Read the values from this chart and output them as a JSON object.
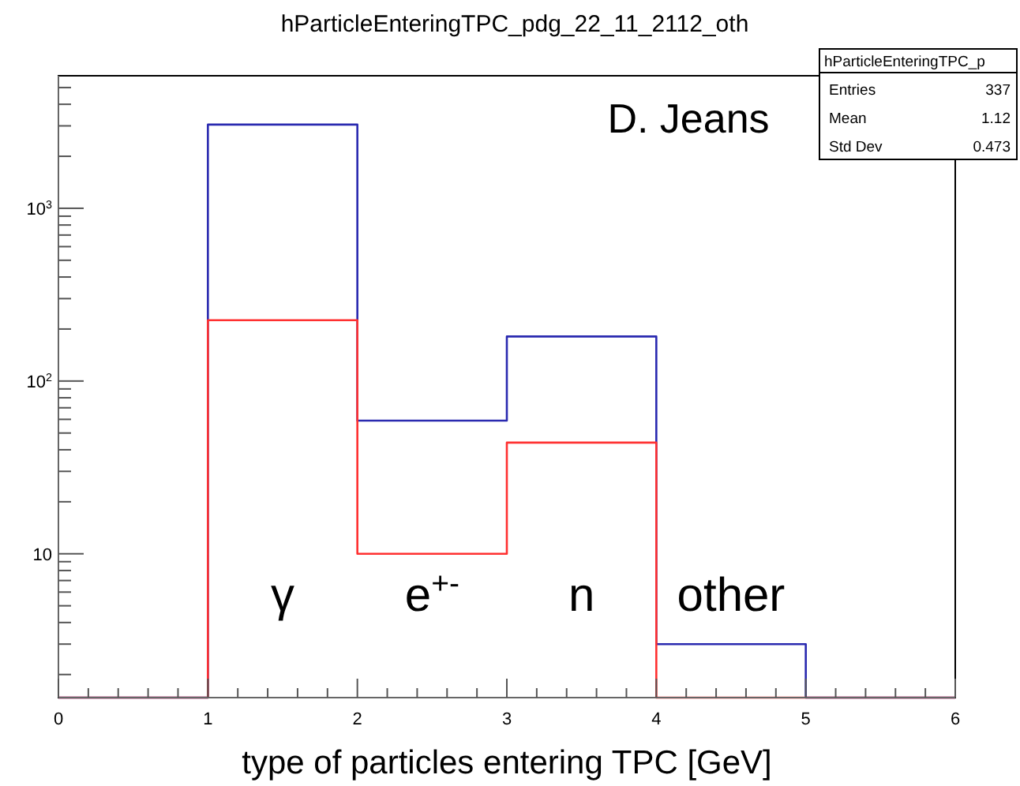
{
  "chart_data": {
    "type": "histogram",
    "title": "hParticleEnteringTPC_pdg_22_11_2112_oth",
    "xlabel": "type of particles entering TPC [GeV]",
    "bins": [
      0,
      1,
      2,
      3,
      4,
      5,
      6
    ],
    "series": [
      {
        "color": "#2a2ab0",
        "values": [
          null,
          3050,
          59,
          181,
          3,
          null
        ]
      },
      {
        "color": "#ff3030",
        "values": [
          null,
          225,
          10,
          44,
          null,
          null
        ]
      }
    ],
    "log": "y",
    "xlim": [
      0,
      6
    ],
    "ylim": [
      1.47,
      5850
    ],
    "xticks": [
      0,
      {
        "value": 0.2,
        "label": null
      },
      {
        "value": 0.4,
        "label": null
      },
      {
        "value": 0.6,
        "label": null
      },
      {
        "value": 0.8,
        "label": null
      },
      1,
      {
        "value": 1.2,
        "label": null
      },
      {
        "value": 1.4,
        "label": null
      },
      {
        "value": 1.6,
        "label": null
      },
      {
        "value": 1.8,
        "label": null
      },
      2,
      {
        "value": 2.2,
        "label": null
      },
      {
        "value": 2.4,
        "label": null
      },
      {
        "value": 2.6,
        "label": null
      },
      {
        "value": 2.8,
        "label": null
      },
      3,
      {
        "value": 3.2,
        "label": null
      },
      {
        "value": 3.4,
        "label": null
      },
      {
        "value": 3.6,
        "label": null
      },
      {
        "value": 3.8,
        "label": null
      },
      4,
      {
        "value": 4.2,
        "label": null
      },
      {
        "value": 4.4,
        "label": null
      },
      {
        "value": 4.6,
        "label": null
      },
      {
        "value": 4.8,
        "label": null
      },
      5,
      {
        "value": 5.2,
        "label": null
      },
      {
        "value": 5.4,
        "label": null
      },
      {
        "value": 5.6,
        "label": null
      },
      {
        "value": 5.8,
        "label": null
      },
      6
    ],
    "yticks": [
      {
        "value": 2,
        "label": null
      },
      {
        "value": 3,
        "label": null
      },
      {
        "value": 4,
        "label": null
      },
      {
        "value": 5,
        "label": null
      },
      {
        "value": 6,
        "label": null
      },
      {
        "value": 7,
        "label": null
      },
      {
        "value": 8,
        "label": null
      },
      {
        "value": 9,
        "label": null
      },
      {
        "value": 10,
        "label": "10"
      },
      {
        "value": 20,
        "label": null
      },
      {
        "value": 30,
        "label": null
      },
      {
        "value": 40,
        "label": null
      },
      {
        "value": 50,
        "label": null
      },
      {
        "value": 60,
        "label": null
      },
      {
        "value": 70,
        "label": null
      },
      {
        "value": 80,
        "label": null
      },
      {
        "value": 90,
        "label": null
      },
      {
        "value": 100,
        "label": "10$^{2}$"
      },
      {
        "value": 200,
        "label": null
      },
      {
        "value": 300,
        "label": null
      },
      {
        "value": 400,
        "label": null
      },
      {
        "value": 500,
        "label": null
      },
      {
        "value": 600,
        "label": null
      },
      {
        "value": 700,
        "label": null
      },
      {
        "value": 800,
        "label": null
      },
      {
        "value": 900,
        "label": null
      },
      {
        "value": 1000,
        "label": "10$^{3}$"
      },
      {
        "value": 2000,
        "label": null
      },
      {
        "value": 3000,
        "label": null
      },
      {
        "value": 4000,
        "label": null
      },
      {
        "value": 5000,
        "label": null
      }
    ],
    "annotations": [
      "D. Jeans",
      "hParticleEnteringTPC_p",
      "Entries 337",
      "Mean 1.12",
      "Std Dev 0.473",
      "γ",
      "e$^{+-}$",
      "n",
      "other"
    ]
  }
}
